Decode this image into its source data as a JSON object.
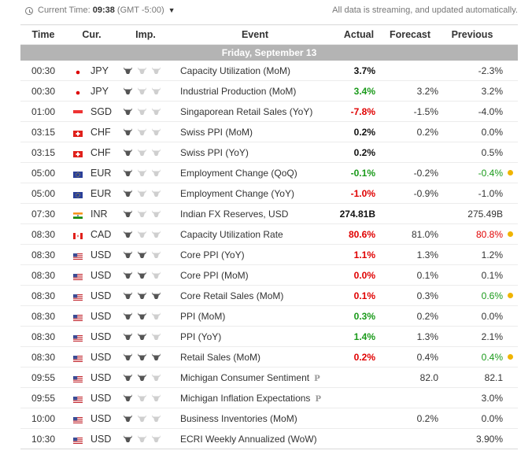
{
  "topbar": {
    "current_time_label": "Current Time:",
    "current_time": "09:38",
    "timezone": "(GMT -5:00)",
    "notice": "All data is streaming, and updated automatically."
  },
  "columns": {
    "time": "Time",
    "currency": "Cur.",
    "importance": "Imp.",
    "event": "Event",
    "actual": "Actual",
    "forecast": "Forecast",
    "previous": "Previous"
  },
  "day_label": "Friday, September 13",
  "colors": {
    "positive": "#1a9a1a",
    "negative": "#e00000",
    "neutral": "#111111",
    "day_bar": "#b4b4b4",
    "revised_dot": "#f0b400"
  },
  "events": [
    {
      "time": "00:30",
      "flag": "japan-flag-icon",
      "currency": "JPY",
      "importance": 1,
      "event": "Capacity Utilization (MoM)",
      "actual": "3.7%",
      "actual_color": "neutral",
      "forecast": "",
      "previous": "-2.3%",
      "previous_color": "neutral",
      "revised": false,
      "preliminary": false
    },
    {
      "time": "00:30",
      "flag": "japan-flag-icon",
      "currency": "JPY",
      "importance": 1,
      "event": "Industrial Production (MoM)",
      "actual": "3.4%",
      "actual_color": "positive",
      "forecast": "3.2%",
      "previous": "3.2%",
      "previous_color": "neutral",
      "revised": false,
      "preliminary": false
    },
    {
      "time": "01:00",
      "flag": "singapore-flag-icon",
      "currency": "SGD",
      "importance": 1,
      "event": "Singaporean Retail Sales (YoY)",
      "actual": "-7.8%",
      "actual_color": "negative",
      "forecast": "-1.5%",
      "previous": "-4.0%",
      "previous_color": "neutral",
      "revised": false,
      "preliminary": false
    },
    {
      "time": "03:15",
      "flag": "switzerland-flag-icon",
      "currency": "CHF",
      "importance": 1,
      "event": "Swiss PPI (MoM)",
      "actual": "0.2%",
      "actual_color": "neutral",
      "forecast": "0.2%",
      "previous": "0.0%",
      "previous_color": "neutral",
      "revised": false,
      "preliminary": false
    },
    {
      "time": "03:15",
      "flag": "switzerland-flag-icon",
      "currency": "CHF",
      "importance": 1,
      "event": "Swiss PPI (YoY)",
      "actual": "0.2%",
      "actual_color": "neutral",
      "forecast": "",
      "previous": "0.5%",
      "previous_color": "neutral",
      "revised": false,
      "preliminary": false
    },
    {
      "time": "05:00",
      "flag": "eu-flag-icon",
      "currency": "EUR",
      "importance": 1,
      "event": "Employment Change (QoQ)",
      "actual": "-0.1%",
      "actual_color": "positive",
      "forecast": "-0.2%",
      "previous": "-0.4%",
      "previous_color": "positive",
      "revised": true,
      "preliminary": false
    },
    {
      "time": "05:00",
      "flag": "eu-flag-icon",
      "currency": "EUR",
      "importance": 1,
      "event": "Employment Change (YoY)",
      "actual": "-1.0%",
      "actual_color": "negative",
      "forecast": "-0.9%",
      "previous": "-1.0%",
      "previous_color": "neutral",
      "revised": false,
      "preliminary": false
    },
    {
      "time": "07:30",
      "flag": "india-flag-icon",
      "currency": "INR",
      "importance": 1,
      "event": "Indian FX Reserves, USD",
      "actual": "274.81B",
      "actual_color": "neutral",
      "forecast": "",
      "previous": "275.49B",
      "previous_color": "neutral",
      "revised": false,
      "preliminary": false
    },
    {
      "time": "08:30",
      "flag": "canada-flag-icon",
      "currency": "CAD",
      "importance": 1,
      "event": "Capacity Utilization Rate",
      "actual": "80.6%",
      "actual_color": "negative",
      "forecast": "81.0%",
      "previous": "80.8%",
      "previous_color": "negative",
      "revised": true,
      "preliminary": false
    },
    {
      "time": "08:30",
      "flag": "usa-flag-icon",
      "currency": "USD",
      "importance": 2,
      "event": "Core PPI (YoY)",
      "actual": "1.1%",
      "actual_color": "negative",
      "forecast": "1.3%",
      "previous": "1.2%",
      "previous_color": "neutral",
      "revised": false,
      "preliminary": false
    },
    {
      "time": "08:30",
      "flag": "usa-flag-icon",
      "currency": "USD",
      "importance": 2,
      "event": "Core PPI (MoM)",
      "actual": "0.0%",
      "actual_color": "negative",
      "forecast": "0.1%",
      "previous": "0.1%",
      "previous_color": "neutral",
      "revised": false,
      "preliminary": false
    },
    {
      "time": "08:30",
      "flag": "usa-flag-icon",
      "currency": "USD",
      "importance": 3,
      "event": "Core Retail Sales (MoM)",
      "actual": "0.1%",
      "actual_color": "negative",
      "forecast": "0.3%",
      "previous": "0.6%",
      "previous_color": "positive",
      "revised": true,
      "preliminary": false
    },
    {
      "time": "08:30",
      "flag": "usa-flag-icon",
      "currency": "USD",
      "importance": 2,
      "event": "PPI (MoM)",
      "actual": "0.3%",
      "actual_color": "positive",
      "forecast": "0.2%",
      "previous": "0.0%",
      "previous_color": "neutral",
      "revised": false,
      "preliminary": false
    },
    {
      "time": "08:30",
      "flag": "usa-flag-icon",
      "currency": "USD",
      "importance": 2,
      "event": "PPI (YoY)",
      "actual": "1.4%",
      "actual_color": "positive",
      "forecast": "1.3%",
      "previous": "2.1%",
      "previous_color": "neutral",
      "revised": false,
      "preliminary": false
    },
    {
      "time": "08:30",
      "flag": "usa-flag-icon",
      "currency": "USD",
      "importance": 3,
      "event": "Retail Sales (MoM)",
      "actual": "0.2%",
      "actual_color": "negative",
      "forecast": "0.4%",
      "previous": "0.4%",
      "previous_color": "positive",
      "revised": true,
      "preliminary": false
    },
    {
      "time": "09:55",
      "flag": "usa-flag-icon",
      "currency": "USD",
      "importance": 2,
      "event": "Michigan Consumer Sentiment",
      "actual": "",
      "actual_color": "neutral",
      "forecast": "82.0",
      "previous": "82.1",
      "previous_color": "neutral",
      "revised": false,
      "preliminary": true
    },
    {
      "time": "09:55",
      "flag": "usa-flag-icon",
      "currency": "USD",
      "importance": 1,
      "event": "Michigan Inflation Expectations",
      "actual": "",
      "actual_color": "neutral",
      "forecast": "",
      "previous": "3.0%",
      "previous_color": "neutral",
      "revised": false,
      "preliminary": true
    },
    {
      "time": "10:00",
      "flag": "usa-flag-icon",
      "currency": "USD",
      "importance": 1,
      "event": "Business Inventories (MoM)",
      "actual": "",
      "actual_color": "neutral",
      "forecast": "0.2%",
      "previous": "0.0%",
      "previous_color": "neutral",
      "revised": false,
      "preliminary": false
    },
    {
      "time": "10:30",
      "flag": "usa-flag-icon",
      "currency": "USD",
      "importance": 1,
      "event": "ECRI Weekly Annualized (WoW)",
      "actual": "",
      "actual_color": "neutral",
      "forecast": "",
      "previous": "3.90%",
      "previous_color": "neutral",
      "revised": false,
      "preliminary": false
    }
  ],
  "preliminary_marker": "P"
}
